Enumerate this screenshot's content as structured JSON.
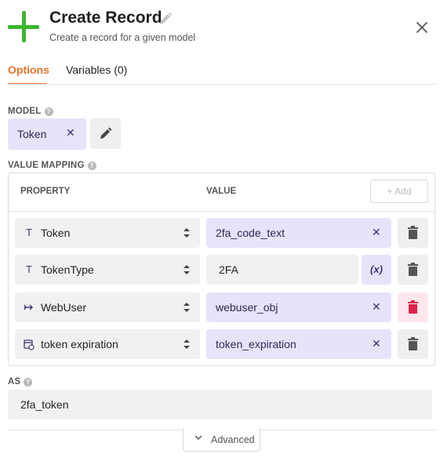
{
  "header": {
    "title": "Create Record",
    "subtitle": "Create a record for a given model",
    "accent_color": "#3cb72e"
  },
  "tabs": [
    {
      "label": "Options",
      "active": true
    },
    {
      "label": "Variables (0)",
      "active": false
    }
  ],
  "model": {
    "label": "MODEL",
    "value": "Token"
  },
  "value_mapping": {
    "label": "VALUE MAPPING",
    "columns": {
      "property": "PROPERTY",
      "value": "VALUE"
    },
    "add_label": "+ Add",
    "rows": [
      {
        "icon": "text-type-icon",
        "property": "Token",
        "value": "2fa_code_text",
        "value_style": "variable",
        "value_action": "clear"
      },
      {
        "icon": "text-type-icon",
        "property": "TokenType",
        "value": "2FA",
        "value_style": "static",
        "value_action": "(x)"
      },
      {
        "icon": "relation-icon",
        "property": "WebUser",
        "value": "webuser_obj",
        "value_style": "variable",
        "value_action": "clear",
        "delete_hover": true
      },
      {
        "icon": "datetime-icon",
        "property": "token expiration",
        "value": "token_expiration",
        "value_style": "variable",
        "value_action": "clear"
      }
    ]
  },
  "as": {
    "label": "AS",
    "value": "2fa_token"
  },
  "advanced_label": "Advanced",
  "colors": {
    "tab_active": "#e8732a",
    "variable_bg": "#e8e2fb",
    "danger_bg": "#fde7ec",
    "danger_icon": "#e0204a"
  }
}
